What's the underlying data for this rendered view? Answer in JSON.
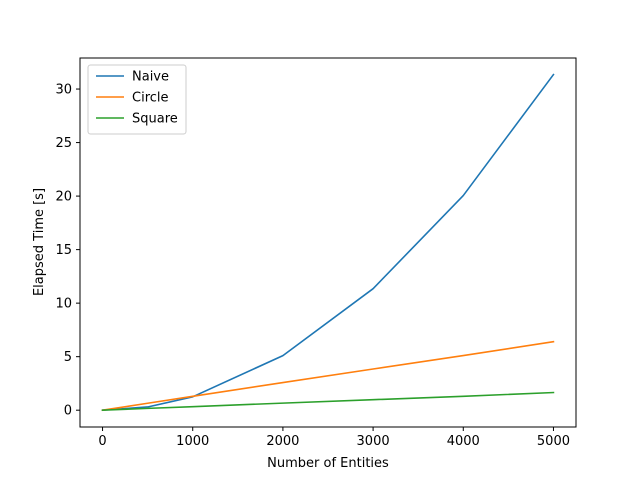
{
  "chart_data": {
    "type": "line",
    "title": "",
    "xlabel": "Number of Entities",
    "ylabel": "Elapsed Time [s]",
    "xlim": [
      -250,
      5250
    ],
    "ylim": [
      -1.57,
      32.9
    ],
    "xticks": [
      0,
      1000,
      2000,
      3000,
      4000,
      5000
    ],
    "xtick_labels": [
      "0",
      "1000",
      "2000",
      "3000",
      "4000",
      "5000"
    ],
    "yticks": [
      0,
      5,
      10,
      15,
      20,
      25,
      30
    ],
    "ytick_labels": [
      "0",
      "5",
      "10",
      "15",
      "20",
      "25",
      "30"
    ],
    "grid": false,
    "legend_placement": "top-left",
    "x": [
      0,
      500,
      1000,
      2000,
      3000,
      4000,
      5000
    ],
    "series": [
      {
        "name": "Naive",
        "color": "#1f77b4",
        "values": [
          0,
          0.3,
          1.25,
          5.1,
          11.35,
          20.05,
          31.35
        ]
      },
      {
        "name": "Circle",
        "color": "#ff7f0e",
        "values": [
          0,
          0.65,
          1.3,
          2.58,
          3.85,
          5.1,
          6.4
        ]
      },
      {
        "name": "Square",
        "color": "#2ca02c",
        "values": [
          0,
          0.17,
          0.33,
          0.66,
          0.98,
          1.3,
          1.65
        ]
      }
    ]
  }
}
